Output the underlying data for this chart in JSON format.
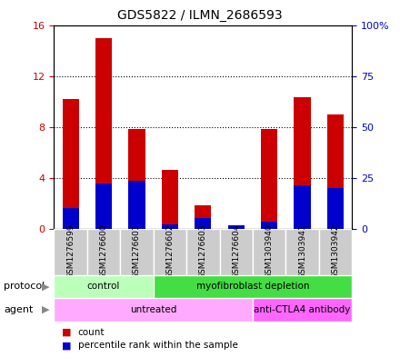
{
  "title": "GDS5822 / ILMN_2686593",
  "samples": [
    "GSM1276599",
    "GSM1276600",
    "GSM1276601",
    "GSM1276602",
    "GSM1276603",
    "GSM1276604",
    "GSM1303940",
    "GSM1303941",
    "GSM1303942"
  ],
  "counts": [
    10.2,
    15.0,
    7.8,
    4.6,
    1.8,
    0.2,
    7.8,
    10.3,
    9.0
  ],
  "percentiles": [
    10.0,
    22.0,
    23.5,
    2.0,
    5.0,
    1.5,
    3.5,
    21.0,
    20.0
  ],
  "count_color": "#cc0000",
  "percentile_color": "#0000cc",
  "ylim_left": [
    0,
    16
  ],
  "ylim_right": [
    0,
    100
  ],
  "yticks_left": [
    0,
    4,
    8,
    12,
    16
  ],
  "ytick_labels_left": [
    "0",
    "4",
    "8",
    "12",
    "16"
  ],
  "yticks_right": [
    0,
    25,
    50,
    75,
    100
  ],
  "ytick_labels_right": [
    "0",
    "25",
    "50",
    "75",
    "100%"
  ],
  "protocol_groups": [
    {
      "label": "control",
      "start": 0,
      "end": 3,
      "color": "#bbffbb"
    },
    {
      "label": "myofibroblast depletion",
      "start": 3,
      "end": 9,
      "color": "#44dd44"
    }
  ],
  "agent_groups": [
    {
      "label": "untreated",
      "start": 0,
      "end": 6,
      "color": "#ffaaff"
    },
    {
      "label": "anti-CTLA4 antibody",
      "start": 6,
      "end": 9,
      "color": "#ff66ff"
    }
  ],
  "legend_count_label": "count",
  "legend_percentile_label": "percentile rank within the sample",
  "protocol_label": "protocol",
  "agent_label": "agent",
  "bar_width": 0.5,
  "sample_bg_color": "#cccccc",
  "plot_bg_color": "#ffffff"
}
